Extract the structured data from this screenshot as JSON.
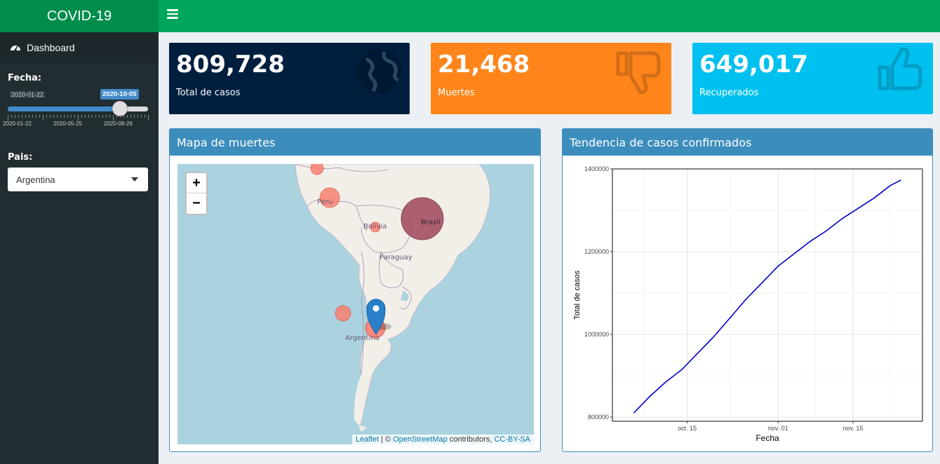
{
  "app": {
    "title": "COVID-19"
  },
  "sidebar": {
    "menu": [
      {
        "label": "Dashboard",
        "icon": "dashboard-icon"
      }
    ],
    "date_filter": {
      "label": "Fecha:",
      "min_label": "2020-01-22",
      "current_label": "2020-10-05",
      "grid_labels": [
        "2020-01-22",
        "2020-05-25",
        "2020-09-26"
      ],
      "position_fraction": 0.8
    },
    "country_filter": {
      "label": "Pais:",
      "selected": "Argentina"
    }
  },
  "value_boxes": [
    {
      "value": "809,728",
      "subtitle": "Total de casos",
      "color": "#001f3f",
      "icon": "globe-icon"
    },
    {
      "value": "21,468",
      "subtitle": "Muertes",
      "color": "#ff851b",
      "icon": "thumbs-down-icon"
    },
    {
      "value": "649,017",
      "subtitle": "Recuperados",
      "color": "#00c0ef",
      "icon": "thumbs-up-icon"
    }
  ],
  "map_panel": {
    "title": "Mapa de muertes",
    "zoom_in": "+",
    "zoom_out": "−",
    "country_labels": [
      "Perú",
      "Bolivia",
      "Brasil",
      "Paraguay",
      "Argentina"
    ],
    "attribution": {
      "leaflet": "Leaflet",
      "sep": " | © ",
      "osm": "OpenStreetMap",
      "contrib": " contributors, ",
      "license": "CC-BY-SA"
    }
  },
  "chart_panel": {
    "title": "Tendencia de casos confirmados"
  },
  "chart_data": {
    "type": "line",
    "xlabel": "Fecha",
    "ylabel": "Total de casos",
    "x_ticks": [
      "oct. 15",
      "nov. 01",
      "nov. 15"
    ],
    "y_ticks": [
      "800000",
      "1000000",
      "1200000",
      "1400000"
    ],
    "ylim": [
      790000,
      1400000
    ],
    "x": [
      "2020-10-05",
      "2020-10-08",
      "2020-10-11",
      "2020-10-14",
      "2020-10-17",
      "2020-10-20",
      "2020-10-23",
      "2020-10-26",
      "2020-10-29",
      "2020-11-01",
      "2020-11-04",
      "2020-11-07",
      "2020-11-10",
      "2020-11-13",
      "2020-11-16",
      "2020-11-19",
      "2020-11-22",
      "2020-11-24"
    ],
    "series": [
      {
        "values": [
          810000,
          850000,
          885000,
          915000,
          955000,
          995000,
          1040000,
          1085000,
          1125000,
          1165000,
          1195000,
          1225000,
          1250000,
          1280000,
          1305000,
          1330000,
          1360000,
          1373000
        ],
        "color": "#0000cc"
      }
    ],
    "grid": true
  }
}
